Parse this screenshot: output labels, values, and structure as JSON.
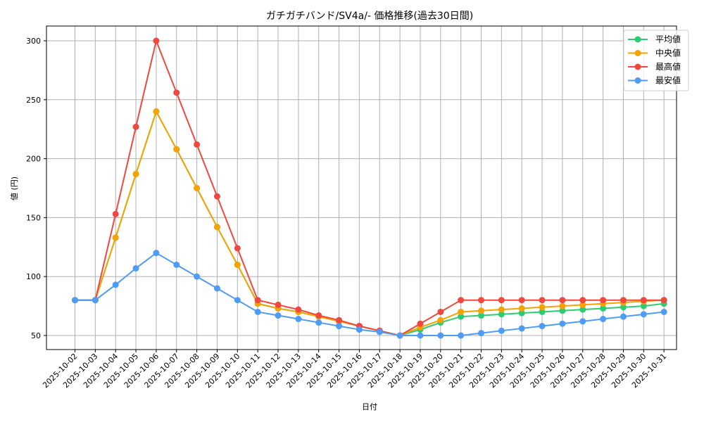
{
  "chart_data": {
    "type": "line",
    "title": "ガチガチバンド/SV4a/- 価格推移(過去30日間)",
    "xlabel": "日付",
    "ylabel": "値 (円)",
    "ylim": [
      37,
      313
    ],
    "yticks": [
      50,
      100,
      150,
      200,
      250,
      300
    ],
    "grid": true,
    "legend_position": "upper right",
    "x": [
      "2025-10-02",
      "2025-10-03",
      "2025-10-04",
      "2025-10-05",
      "2025-10-06",
      "2025-10-07",
      "2025-10-08",
      "2025-10-09",
      "2025-10-10",
      "2025-10-11",
      "2025-10-12",
      "2025-10-13",
      "2025-10-14",
      "2025-10-15",
      "2025-10-16",
      "2025-10-17",
      "2025-10-18",
      "2025-10-19",
      "2025-10-20",
      "2025-10-21",
      "2025-10-22",
      "2025-10-23",
      "2025-10-24",
      "2025-10-25",
      "2025-10-26",
      "2025-10-27",
      "2025-10-28",
      "2025-10-29",
      "2025-10-30",
      "2025-10-31"
    ],
    "series": [
      {
        "name": "平均値",
        "color": "#2ecc71",
        "values": [
          80,
          80,
          133,
          187,
          240,
          208,
          175,
          142,
          110,
          77,
          73,
          70,
          66,
          62,
          58,
          54,
          50,
          55,
          61,
          66,
          67,
          68,
          69,
          70,
          71,
          72,
          73,
          74,
          75,
          77
        ]
      },
      {
        "name": "中央値",
        "color": "#f5a300",
        "values": [
          80,
          80,
          133,
          187,
          240,
          208,
          175,
          142,
          110,
          77,
          73,
          70,
          66,
          62,
          58,
          54,
          50,
          57,
          63,
          70,
          71,
          72,
          73,
          74,
          75,
          76,
          77,
          78,
          79,
          80
        ]
      },
      {
        "name": "最高値",
        "color": "#f0483e",
        "values": [
          80,
          80,
          153,
          227,
          300,
          256,
          212,
          168,
          124,
          80,
          76,
          72,
          67,
          63,
          58,
          54,
          50,
          60,
          70,
          80,
          80,
          80,
          80,
          80,
          80,
          80,
          80,
          80,
          80,
          80
        ]
      },
      {
        "name": "最安値",
        "color": "#4e9cf5",
        "values": [
          80,
          80,
          93,
          107,
          120,
          110,
          100,
          90,
          80,
          70,
          67,
          64,
          61,
          58,
          55,
          53,
          50,
          50,
          50,
          50,
          52,
          54,
          56,
          58,
          60,
          62,
          64,
          66,
          68,
          70
        ]
      }
    ]
  }
}
